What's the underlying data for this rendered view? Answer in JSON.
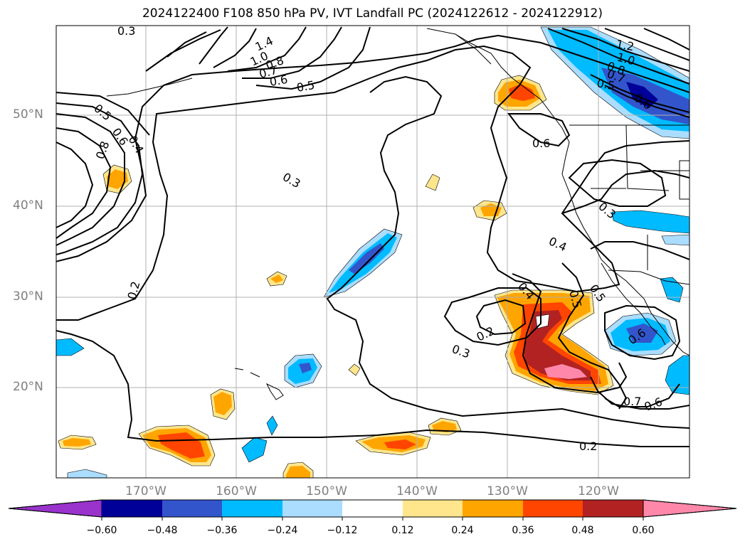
{
  "title": "2024122400 F108 850 hPa PV, IVT Landfall PC (2024122612 - 2024122912)",
  "axes": {
    "lat_labels": [
      "50°N",
      "40°N",
      "30°N",
      "20°N"
    ],
    "lon_labels": [
      "170°W",
      "160°W",
      "150°W",
      "140°W",
      "130°W",
      "120°W"
    ]
  },
  "contour_labels": [
    "0.3",
    "1.4",
    "1.0",
    "0.8",
    "0.7",
    "0.6",
    "0.5",
    "0.5",
    "0.6",
    "0.8",
    "0.4",
    "0.3",
    "0.2",
    "1.2",
    "1.0",
    "0.8",
    "0.7",
    "0.5",
    "0.6",
    "0.6",
    "0.3",
    "0.4",
    "0.4",
    "0.5",
    "0.5",
    "0.6",
    "0.2",
    "0.3",
    "0.7",
    "0.6",
    "0.2"
  ],
  "colorbar": {
    "tick_labels": [
      "−0.60",
      "−0.48",
      "−0.36",
      "−0.24",
      "−0.12",
      "0.12",
      "0.24",
      "0.36",
      "0.48",
      "0.60"
    ],
    "colors": [
      "#9933cc",
      "#000099",
      "#3355cc",
      "#00bbff",
      "#aaddff",
      "#ffffff",
      "#ffe68c",
      "#ffa500",
      "#ff4500",
      "#b22222",
      "#ff88aa"
    ]
  },
  "shading_colors": {
    "neg_light": "#aaddff",
    "neg_mid": "#00bbff",
    "neg_dark": "#3355cc",
    "neg_darkest": "#000099",
    "pos_light": "#ffe68c",
    "pos_mid": "#ffa500",
    "pos_strong": "#ff4500",
    "pos_darker": "#b22222",
    "pos_max": "#ff88aa"
  }
}
